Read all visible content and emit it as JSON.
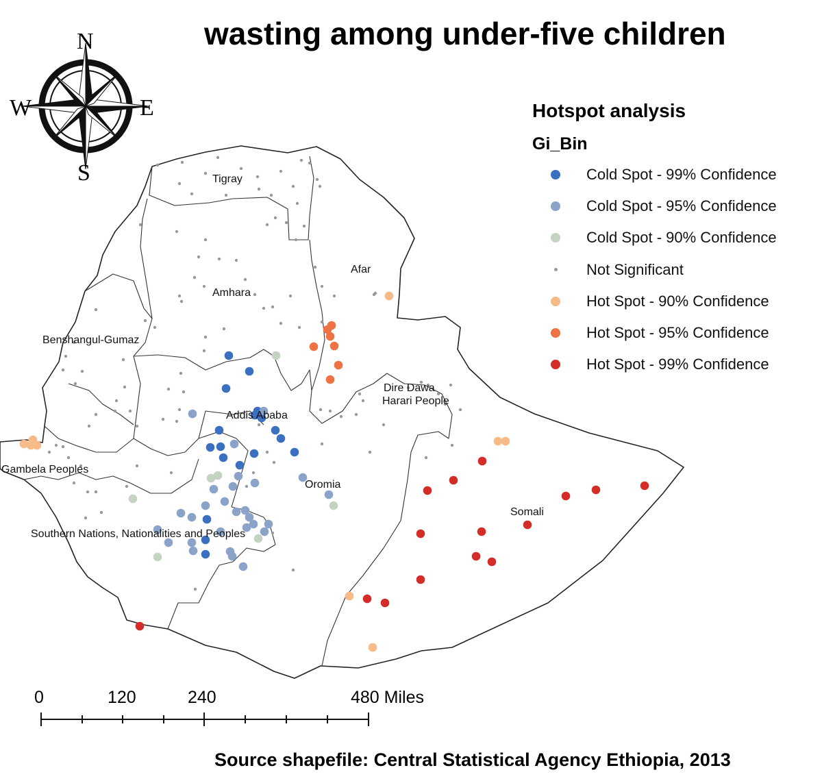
{
  "title": "wasting among under-five children",
  "source": "Source shapefile: Central Statistical Agency Ethiopia, 2013",
  "compass": {
    "n": "N",
    "s": "S",
    "e": "E",
    "w": "W"
  },
  "legend": {
    "title": "Hotspot analysis",
    "subtitle": "Gi_Bin",
    "items": [
      {
        "label": "Cold Spot - 99% Confidence",
        "color": "#3b6fc0",
        "size": "large"
      },
      {
        "label": "Cold Spot - 95% Confidence",
        "color": "#8ba3c9",
        "size": "large"
      },
      {
        "label": "Cold Spot - 90% Confidence",
        "color": "#c5d3c2",
        "size": "large"
      },
      {
        "label": "Not Significant",
        "color": "#999999",
        "size": "small"
      },
      {
        "label": "Hot Spot - 90% Confidence",
        "color": "#f6bb86",
        "size": "large"
      },
      {
        "label": "Hot Spot - 95% Confidence",
        "color": "#ef7245",
        "size": "large"
      },
      {
        "label": "Hot Spot - 99% Confidence",
        "color": "#d42c28",
        "size": "large"
      }
    ]
  },
  "scale": {
    "labels": [
      "0",
      "120",
      "240",
      "480 Miles"
    ]
  },
  "regions": [
    "Tigray",
    "Afar",
    "Amhara",
    "Benshangul-Gumaz",
    "Dire Dawa",
    "Harari People",
    "Addis Ababa",
    "Gambela Peoples",
    "Oromia",
    "Somali",
    "Southern Nations, Nationalities and Peoples"
  ]
}
